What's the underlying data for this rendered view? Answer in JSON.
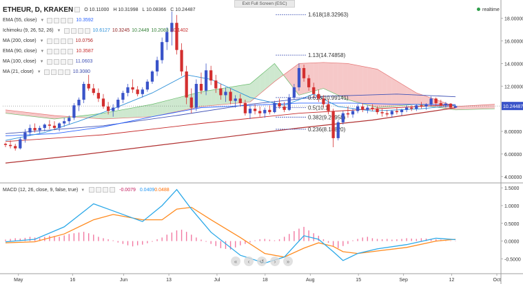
{
  "window": {
    "exit_fullscreen": "Exit Full Screen (ESC)",
    "realtime": "realtime"
  },
  "symbol": {
    "name": "ETHEUR, D, KRAKEN",
    "open": "O 10.11000",
    "high": "H 10.31998",
    "low": "L 10.08366",
    "close": "C 10.24487"
  },
  "indicators": [
    {
      "name": "EMA (55, close)",
      "values": [
        "10.3592"
      ],
      "colors": [
        "#2962ff"
      ]
    },
    {
      "name": "Ichimoku (9, 26, 52, 26)",
      "values": [
        "10.6127",
        "10.3245",
        "10.2449",
        "10.2083",
        "10.1402"
      ],
      "colors": [
        "#2a8fd8",
        "#8b1a1a",
        "#2e7d32",
        "#2e7d32",
        "#c62828"
      ]
    },
    {
      "name": "MA (200, close)",
      "values": [
        "10.0756"
      ],
      "colors": [
        "#b22222"
      ]
    },
    {
      "name": "EMA (90, close)",
      "values": [
        "10.3587"
      ],
      "colors": [
        "#c62828"
      ]
    },
    {
      "name": "MA (100, close)",
      "values": [
        "11.0603"
      ],
      "colors": [
        "#3f51b5"
      ]
    },
    {
      "name": "MA (21, close)",
      "values": [
        "10.3080"
      ],
      "colors": [
        "#3949ab"
      ]
    }
  ],
  "macd_legend": {
    "name": "MACD (12, 26, close, 9, false, true)",
    "values": [
      "-0.0079",
      "0.0409",
      "0.0488"
    ],
    "colors": [
      "#c2185b",
      "#2196f3",
      "#ff6d00"
    ]
  },
  "price_axis": {
    "ticks": [
      "18.00000",
      "16.00000",
      "14.00000",
      "12.00000",
      "10.24487",
      "8.00000",
      "6.00000",
      "4.00000"
    ],
    "current_label": "10.24487"
  },
  "macd_axis": {
    "ticks": [
      "1.5000",
      "1.0000",
      "0.5000",
      "0.0000",
      "-0.5000"
    ]
  },
  "time_axis": {
    "ticks": [
      "May",
      "16",
      "Jun",
      "13",
      "Jul",
      "18",
      "Aug",
      "15",
      "Sep",
      "12",
      "Oct"
    ]
  },
  "fib_levels": [
    {
      "label": "1.618(18.32963)",
      "value": 18.32963
    },
    {
      "label": "1.13(14.74858)",
      "value": 14.74858
    },
    {
      "label": "0.618(10.99141)",
      "value": 10.99141
    },
    {
      "label": "0.5(10.1)",
      "value": 10.1
    },
    {
      "label": "0.382(9.25958)",
      "value": 9.25958
    },
    {
      "label": "0.236(8.18820)",
      "value": 8.1882
    }
  ],
  "colors": {
    "bull": "#3a54c9",
    "bear": "#d32f2f",
    "kumo_bull": "#a5d6a7",
    "kumo_bear": "#ef9a9a",
    "macd_line": "#2aa8e8",
    "signal_line": "#ff8a1e",
    "hist": "#e91e63",
    "ma200": "#b03030"
  },
  "chart_data": {
    "type": "candlestick",
    "series_name": "ETHEUR",
    "x_ticks": [
      "May",
      "16",
      "Jun",
      "13",
      "Jul",
      "18",
      "Aug",
      "15",
      "Sep",
      "12",
      "Oct"
    ],
    "ylim": [
      3.5,
      19.5
    ],
    "macd_ylim": [
      -0.9,
      1.6
    ],
    "last_close": 10.24487,
    "ohlc": [
      [
        6.9,
        7.0,
        6.6,
        6.8
      ],
      [
        6.8,
        7.2,
        6.5,
        6.7
      ],
      [
        6.7,
        6.9,
        6.3,
        6.5
      ],
      [
        6.5,
        7.5,
        6.4,
        7.3
      ],
      [
        7.3,
        8.2,
        7.0,
        7.9
      ],
      [
        7.9,
        8.6,
        7.6,
        8.3
      ],
      [
        8.3,
        8.7,
        7.9,
        8.1
      ],
      [
        8.1,
        8.5,
        7.8,
        8.3
      ],
      [
        8.3,
        8.7,
        8.0,
        8.6
      ],
      [
        8.6,
        9.0,
        8.2,
        8.5
      ],
      [
        8.5,
        8.9,
        8.1,
        8.3
      ],
      [
        8.3,
        8.8,
        8.0,
        8.7
      ],
      [
        8.7,
        9.2,
        8.4,
        8.9
      ],
      [
        8.9,
        9.4,
        8.6,
        9.2
      ],
      [
        9.2,
        10.5,
        9.0,
        10.3
      ],
      [
        10.3,
        11.0,
        9.8,
        10.8
      ],
      [
        10.8,
        12.4,
        10.5,
        12.2
      ],
      [
        12.2,
        13.0,
        11.6,
        11.8
      ],
      [
        11.8,
        12.2,
        11.2,
        11.4
      ],
      [
        11.4,
        11.8,
        10.6,
        10.9
      ],
      [
        10.9,
        11.3,
        10.0,
        10.2
      ],
      [
        10.2,
        10.6,
        9.5,
        9.8
      ],
      [
        9.8,
        10.4,
        9.3,
        10.1
      ],
      [
        10.1,
        11.0,
        9.9,
        10.8
      ],
      [
        10.8,
        11.6,
        10.5,
        11.4
      ],
      [
        11.4,
        12.2,
        11.1,
        11.9
      ],
      [
        11.9,
        12.6,
        11.4,
        11.7
      ],
      [
        11.7,
        12.0,
        11.1,
        11.3
      ],
      [
        11.3,
        11.9,
        11.0,
        11.7
      ],
      [
        11.7,
        12.6,
        11.5,
        12.4
      ],
      [
        12.4,
        13.4,
        12.2,
        13.3
      ],
      [
        13.3,
        14.6,
        12.9,
        14.3
      ],
      [
        14.3,
        16.3,
        14.0,
        15.9
      ],
      [
        15.9,
        17.2,
        15.2,
        16.8
      ],
      [
        16.8,
        18.6,
        15.6,
        17.6
      ],
      [
        17.6,
        18.3,
        14.8,
        15.2
      ],
      [
        15.2,
        15.8,
        12.9,
        13.3
      ],
      [
        13.3,
        13.8,
        10.4,
        11.0
      ],
      [
        11.0,
        11.8,
        9.6,
        10.1
      ],
      [
        10.1,
        12.6,
        9.8,
        12.2
      ],
      [
        12.2,
        13.2,
        11.3,
        11.6
      ],
      [
        11.6,
        14.0,
        11.2,
        13.4
      ],
      [
        13.4,
        13.8,
        12.1,
        12.5
      ],
      [
        12.5,
        13.0,
        11.4,
        11.8
      ],
      [
        11.8,
        12.2,
        10.8,
        11.2
      ],
      [
        11.2,
        11.9,
        10.6,
        11.5
      ],
      [
        11.5,
        11.8,
        10.4,
        10.7
      ],
      [
        10.7,
        11.2,
        10.1,
        10.9
      ],
      [
        10.9,
        11.3,
        10.2,
        10.5
      ],
      [
        10.5,
        10.8,
        9.4,
        9.6
      ],
      [
        9.6,
        10.3,
        9.1,
        10.0
      ],
      [
        10.0,
        10.4,
        9.5,
        9.8
      ],
      [
        9.8,
        10.2,
        9.3,
        9.6
      ],
      [
        9.6,
        10.1,
        9.2,
        9.9
      ],
      [
        9.9,
        10.3,
        9.5,
        9.7
      ],
      [
        9.7,
        10.7,
        9.6,
        10.5
      ],
      [
        10.5,
        10.9,
        10.0,
        10.2
      ],
      [
        10.2,
        10.6,
        9.7,
        9.9
      ],
      [
        9.9,
        11.3,
        9.8,
        11.0
      ],
      [
        11.0,
        12.2,
        10.8,
        11.9
      ],
      [
        11.9,
        14.0,
        11.6,
        13.6
      ],
      [
        13.6,
        13.9,
        12.4,
        12.7
      ],
      [
        12.7,
        13.0,
        11.6,
        11.9
      ],
      [
        11.9,
        12.3,
        11.0,
        11.3
      ],
      [
        11.3,
        11.7,
        10.6,
        10.9
      ],
      [
        10.9,
        11.2,
        10.1,
        10.4
      ],
      [
        10.4,
        10.8,
        9.5,
        9.8
      ],
      [
        9.8,
        10.0,
        6.6,
        7.4
      ],
      [
        7.4,
        9.0,
        7.2,
        8.8
      ],
      [
        8.8,
        9.8,
        8.6,
        9.6
      ],
      [
        9.6,
        10.2,
        9.2,
        9.5
      ],
      [
        9.5,
        10.0,
        9.2,
        9.8
      ],
      [
        9.8,
        10.4,
        9.6,
        10.2
      ],
      [
        10.2,
        10.5,
        9.7,
        9.9
      ],
      [
        9.9,
        10.3,
        9.6,
        10.1
      ],
      [
        10.1,
        10.4,
        9.8,
        10.0
      ],
      [
        10.0,
        10.2,
        9.5,
        9.7
      ],
      [
        9.7,
        10.0,
        9.3,
        9.6
      ],
      [
        9.6,
        9.9,
        9.3,
        9.5
      ],
      [
        9.5,
        9.9,
        9.2,
        9.8
      ],
      [
        9.8,
        10.1,
        9.5,
        9.7
      ],
      [
        9.7,
        10.0,
        9.4,
        9.9
      ],
      [
        9.9,
        10.3,
        9.7,
        10.1
      ],
      [
        10.1,
        10.3,
        9.8,
        10.0
      ],
      [
        10.0,
        10.4,
        9.8,
        10.3
      ],
      [
        10.3,
        10.6,
        10.0,
        10.2
      ],
      [
        10.2,
        10.5,
        9.9,
        10.4
      ],
      [
        10.4,
        11.1,
        10.2,
        10.9
      ],
      [
        10.9,
        11.0,
        10.3,
        10.5
      ],
      [
        10.5,
        10.8,
        10.2,
        10.3
      ],
      [
        10.3,
        10.6,
        10.1,
        10.45
      ],
      [
        10.45,
        10.5,
        10.0,
        10.1
      ],
      [
        10.1,
        10.32,
        10.08,
        10.24
      ]
    ],
    "ema55": [
      [
        0,
        7.6
      ],
      [
        10,
        7.8
      ],
      [
        20,
        8.4
      ],
      [
        30,
        9.3
      ],
      [
        40,
        10.1
      ],
      [
        50,
        10.3
      ],
      [
        60,
        10.5
      ],
      [
        70,
        10.5
      ],
      [
        80,
        10.4
      ],
      [
        92,
        10.36
      ]
    ],
    "ma200": [
      [
        0,
        5.2
      ],
      [
        15,
        5.9
      ],
      [
        30,
        6.7
      ],
      [
        45,
        7.5
      ],
      [
        60,
        8.3
      ],
      [
        75,
        9.0
      ],
      [
        92,
        10.08
      ]
    ],
    "ema90": [
      [
        0,
        7.1
      ],
      [
        20,
        7.7
      ],
      [
        40,
        8.7
      ],
      [
        60,
        9.6
      ],
      [
        80,
        10.1
      ],
      [
        92,
        10.36
      ]
    ],
    "ma100": [
      [
        0,
        7.8
      ],
      [
        20,
        8.5
      ],
      [
        35,
        9.4
      ],
      [
        50,
        10.4
      ],
      [
        65,
        11.1
      ],
      [
        80,
        11.3
      ],
      [
        92,
        11.06
      ]
    ],
    "ma21": [
      [
        0,
        7.2
      ],
      [
        8,
        7.9
      ],
      [
        15,
        8.9
      ],
      [
        22,
        10.0
      ],
      [
        30,
        11.4
      ],
      [
        37,
        13.0
      ],
      [
        42,
        12.6
      ],
      [
        50,
        11.0
      ],
      [
        57,
        10.3
      ],
      [
        63,
        11.3
      ],
      [
        68,
        10.2
      ],
      [
        75,
        9.8
      ],
      [
        85,
        10.0
      ],
      [
        92,
        10.3
      ]
    ],
    "kumo_a": [
      [
        0,
        9.6
      ],
      [
        10,
        9.1
      ],
      [
        20,
        9.6
      ],
      [
        30,
        10.4
      ],
      [
        40,
        11.5
      ],
      [
        50,
        12.2
      ],
      [
        55,
        14.0
      ],
      [
        60,
        11.2
      ],
      [
        65,
        11.8
      ],
      [
        70,
        10.8
      ],
      [
        76,
        10.1
      ],
      [
        84,
        10.4
      ],
      [
        92,
        9.9
      ],
      [
        100,
        10.0
      ]
    ],
    "kumo_b": [
      [
        0,
        9.9
      ],
      [
        10,
        9.4
      ],
      [
        20,
        9.1
      ],
      [
        30,
        9.3
      ],
      [
        40,
        10.2
      ],
      [
        50,
        10.6
      ],
      [
        55,
        12.4
      ],
      [
        60,
        14.0
      ],
      [
        65,
        14.1
      ],
      [
        70,
        14.0
      ],
      [
        76,
        13.5
      ],
      [
        84,
        11.4
      ],
      [
        92,
        10.2
      ],
      [
        100,
        10.4
      ]
    ],
    "macd": [
      [
        0,
        -0.02
      ],
      [
        6,
        0.05
      ],
      [
        12,
        0.4
      ],
      [
        18,
        1.05
      ],
      [
        22,
        0.85
      ],
      [
        28,
        0.55
      ],
      [
        32,
        1.0
      ],
      [
        35,
        1.45
      ],
      [
        38,
        0.9
      ],
      [
        42,
        0.25
      ],
      [
        48,
        -0.4
      ],
      [
        53,
        -0.62
      ],
      [
        57,
        -0.45
      ],
      [
        61,
        0.15
      ],
      [
        64,
        0.05
      ],
      [
        67,
        -0.3
      ],
      [
        69,
        -0.55
      ],
      [
        72,
        -0.35
      ],
      [
        76,
        -0.22
      ],
      [
        82,
        -0.1
      ],
      [
        88,
        0.08
      ],
      [
        92,
        0.04
      ]
    ],
    "signal": [
      [
        0,
        -0.05
      ],
      [
        6,
        -0.02
      ],
      [
        12,
        0.2
      ],
      [
        18,
        0.6
      ],
      [
        22,
        0.75
      ],
      [
        28,
        0.6
      ],
      [
        32,
        0.6
      ],
      [
        35,
        0.9
      ],
      [
        38,
        0.95
      ],
      [
        42,
        0.6
      ],
      [
        48,
        0.1
      ],
      [
        53,
        -0.35
      ],
      [
        57,
        -0.45
      ],
      [
        61,
        -0.2
      ],
      [
        64,
        -0.05
      ],
      [
        67,
        -0.15
      ],
      [
        69,
        -0.3
      ],
      [
        72,
        -0.35
      ],
      [
        76,
        -0.28
      ],
      [
        82,
        -0.18
      ],
      [
        88,
        0.0
      ],
      [
        92,
        0.05
      ]
    ],
    "macd_hist": [
      0.04,
      0.06,
      0.08,
      0.07,
      0.09,
      0.12,
      0.1,
      0.08,
      0.12,
      0.15,
      0.14,
      0.12,
      0.16,
      0.2,
      0.22,
      0.24,
      0.26,
      0.22,
      0.18,
      0.12,
      0.08,
      0.05,
      0.02,
      -0.04,
      -0.08,
      -0.12,
      -0.15,
      -0.12,
      -0.1,
      -0.06,
      -0.02,
      0.05,
      0.1,
      0.18,
      0.24,
      0.3,
      0.32,
      0.26,
      0.18,
      0.1,
      0.04,
      -0.02,
      -0.08,
      -0.14,
      -0.2,
      -0.22,
      -0.24,
      -0.18,
      -0.12,
      -0.08,
      -0.04,
      0.02,
      0.05,
      0.06,
      0.04,
      0.02,
      0.05,
      0.12,
      0.2,
      0.28,
      0.35,
      0.4,
      0.3,
      0.22,
      0.15,
      0.05,
      -0.05,
      -0.15,
      -0.2,
      -0.14,
      -0.08,
      0.02,
      0.06,
      0.1,
      0.12,
      0.08,
      0.06,
      0.05,
      0.06,
      0.04,
      0.05,
      0.06,
      0.08,
      0.07,
      0.06,
      0.08,
      0.07,
      0.06,
      0.05,
      0.04,
      -0.01,
      -0.008,
      -0.0079
    ]
  }
}
